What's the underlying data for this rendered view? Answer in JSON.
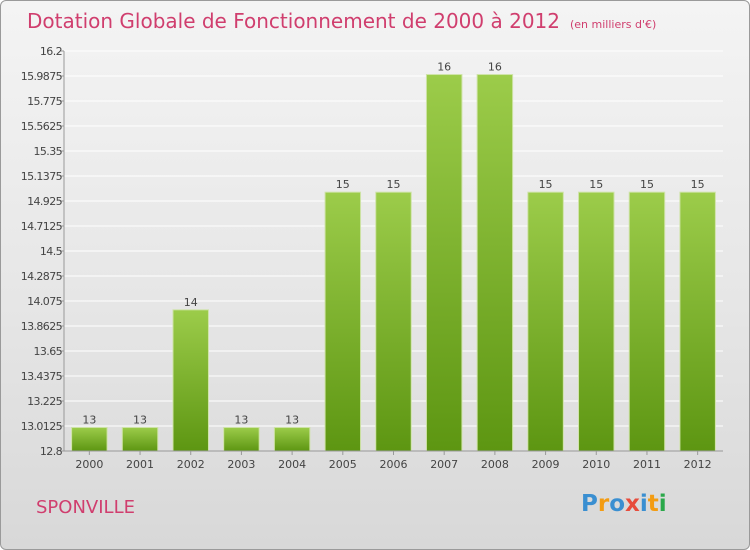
{
  "title": "Dotation Globale de Fonctionnement de 2000 à 2012",
  "unit": "(en milliers d'€)",
  "commune": "SPONVILLE",
  "logo": {
    "letters": [
      "P",
      "r",
      "o",
      "x",
      "i",
      "t",
      "i"
    ],
    "colors": [
      "#3a8fd1",
      "#f39c12",
      "#3a8fd1",
      "#e74c3c",
      "#3a8fd1",
      "#f39c12",
      "#2aa84a"
    ]
  },
  "colors": {
    "bar_top": "#9ccc4a",
    "bar_bottom": "#5d9612",
    "title": "#d03e6e"
  },
  "chart_data": {
    "type": "bar",
    "categories": [
      "2000",
      "2001",
      "2002",
      "2003",
      "2004",
      "2005",
      "2006",
      "2007",
      "2008",
      "2009",
      "2010",
      "2011",
      "2012"
    ],
    "values": [
      13,
      13,
      14,
      13,
      13,
      15,
      15,
      16,
      16,
      15,
      15,
      15,
      15
    ],
    "data_labels": [
      "13",
      "13",
      "14",
      "13",
      "13",
      "15",
      "15",
      "16",
      "16",
      "15",
      "15",
      "15",
      "15"
    ],
    "yticks": [
      12.8,
      13.0125,
      13.225,
      13.4375,
      13.65,
      13.8625,
      14.075,
      14.2875,
      14.5,
      14.7125,
      14.925,
      15.1375,
      15.35,
      15.5625,
      15.775,
      15.9875,
      16.2
    ],
    "ytick_labels": [
      "12.8",
      "13.0125",
      "13.225",
      "13.4375",
      "13.65",
      "13.8625",
      "14.075",
      "14.2875",
      "14.5",
      "14.7125",
      "14.925",
      "15.1375",
      "15.35",
      "15.5625",
      "15.775",
      "15.9875",
      "16.2"
    ],
    "ylim": [
      12.8,
      16.2
    ],
    "grid": true,
    "title": "Dotation Globale de Fonctionnement de 2000 à 2012",
    "xlabel": "",
    "ylabel": ""
  }
}
